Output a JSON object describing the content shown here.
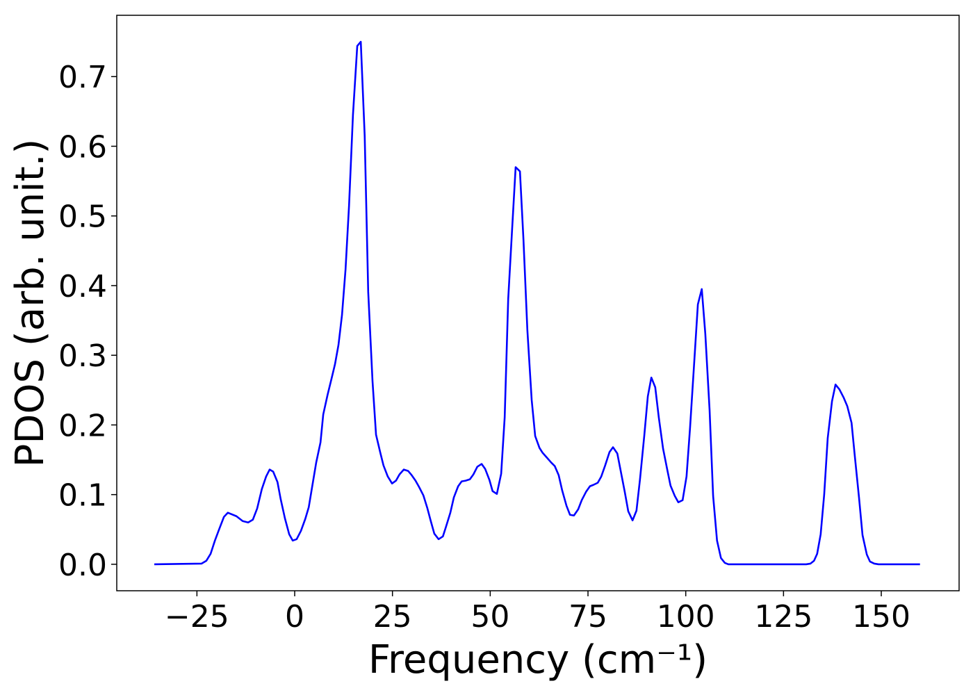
{
  "chart_data": {
    "type": "line",
    "xlabel": "Frequency (cm⁻¹)",
    "ylabel": "PDOS (arb. unit.)",
    "color": "#0000ff",
    "x": [
      -35.9,
      -23.8,
      -22.6,
      -21.5,
      -20.4,
      -19.2,
      -18.1,
      -17.1,
      -14.9,
      -13.3,
      -11.9,
      -10.7,
      -9.6,
      -8.4,
      -7.3,
      -6.4,
      -5.5,
      -4.4,
      -3.6,
      -2.5,
      -1.4,
      -0.5,
      0.5,
      1.6,
      2.7,
      3.6,
      4.4,
      5.5,
      6.6,
      7.3,
      8.4,
      9.4,
      10.3,
      11.2,
      12.1,
      13,
      13.9,
      14.9,
      16,
      16.9,
      17.9,
      18.8,
      19.9,
      20.8,
      21.9,
      22.7,
      23.8,
      24.9,
      25.9,
      26.8,
      27.9,
      29,
      29.9,
      30.9,
      31.8,
      32.9,
      33.9,
      34.8,
      35.7,
      36.8,
      37.9,
      38.7,
      39.8,
      40.7,
      41.8,
      42.7,
      43.7,
      44.8,
      45.7,
      46.7,
      47.8,
      48.7,
      49.8,
      50.6,
      51.7,
      52.8,
      53.7,
      54.6,
      55.6,
      56.5,
      57.6,
      58.5,
      59.5,
      60.6,
      61.5,
      62.6,
      63.4,
      64.5,
      65.6,
      66.5,
      67.5,
      68.4,
      69.5,
      70.4,
      71.4,
      72.5,
      73.4,
      74.5,
      75.5,
      76.4,
      77.5,
      78.4,
      79.4,
      80.5,
      81.4,
      82.5,
      83.3,
      84.4,
      85.3,
      86.4,
      87.4,
      88.3,
      89.4,
      90.3,
      91.2,
      92.2,
      93.1,
      94.2,
      95.3,
      96.1,
      97.2,
      98.1,
      99.2,
      100.2,
      101.1,
      102.2,
      103.1,
      104.1,
      105,
      106.1,
      107,
      108,
      109,
      110,
      110.9,
      130.8,
      131.9,
      132.8,
      133.6,
      134.5,
      135.4,
      136.3,
      137.4,
      138.3,
      139.3,
      140.4,
      141.3,
      142.4,
      143.2,
      144.3,
      145.2,
      146.3,
      147.1,
      148.2,
      149.3,
      159.9
    ],
    "values": [
      0,
      0.001,
      0.005,
      0.015,
      0.034,
      0.052,
      0.068,
      0.074,
      0.069,
      0.062,
      0.06,
      0.064,
      0.08,
      0.108,
      0.126,
      0.136,
      0.133,
      0.118,
      0.094,
      0.066,
      0.043,
      0.034,
      0.036,
      0.048,
      0.065,
      0.082,
      0.109,
      0.146,
      0.175,
      0.215,
      0.243,
      0.266,
      0.287,
      0.315,
      0.358,
      0.423,
      0.515,
      0.645,
      0.744,
      0.75,
      0.615,
      0.391,
      0.263,
      0.186,
      0.16,
      0.142,
      0.126,
      0.116,
      0.12,
      0.129,
      0.136,
      0.134,
      0.128,
      0.12,
      0.111,
      0.099,
      0.081,
      0.062,
      0.044,
      0.036,
      0.04,
      0.054,
      0.074,
      0.096,
      0.112,
      0.119,
      0.12,
      0.122,
      0.129,
      0.14,
      0.144,
      0.137,
      0.121,
      0.105,
      0.101,
      0.13,
      0.211,
      0.381,
      0.481,
      0.57,
      0.564,
      0.466,
      0.336,
      0.236,
      0.184,
      0.167,
      0.16,
      0.153,
      0.146,
      0.141,
      0.128,
      0.106,
      0.084,
      0.071,
      0.07,
      0.079,
      0.092,
      0.104,
      0.112,
      0.114,
      0.117,
      0.126,
      0.142,
      0.161,
      0.168,
      0.159,
      0.136,
      0.104,
      0.076,
      0.063,
      0.077,
      0.122,
      0.185,
      0.241,
      0.268,
      0.254,
      0.211,
      0.166,
      0.135,
      0.113,
      0.098,
      0.089,
      0.092,
      0.126,
      0.196,
      0.293,
      0.373,
      0.395,
      0.331,
      0.221,
      0.098,
      0.034,
      0.009,
      0.002,
      0,
      0,
      0.001,
      0.005,
      0.015,
      0.043,
      0.1,
      0.181,
      0.234,
      0.258,
      0.251,
      0.239,
      0.227,
      0.203,
      0.157,
      0.096,
      0.042,
      0.014,
      0.004,
      0.001,
      0,
      0
    ],
    "xlim": [
      -45.5,
      169.9
    ],
    "ylim": [
      -0.038,
      0.788
    ],
    "xticks": [
      {
        "value": -25,
        "label": "−25"
      },
      {
        "value": 0,
        "label": "0"
      },
      25,
      50,
      75,
      100,
      125,
      150
    ],
    "yticks": [
      {
        "value": 0,
        "label": "0.0"
      },
      0.1,
      0.2,
      0.3,
      0.4,
      0.5,
      0.6,
      0.7
    ]
  }
}
